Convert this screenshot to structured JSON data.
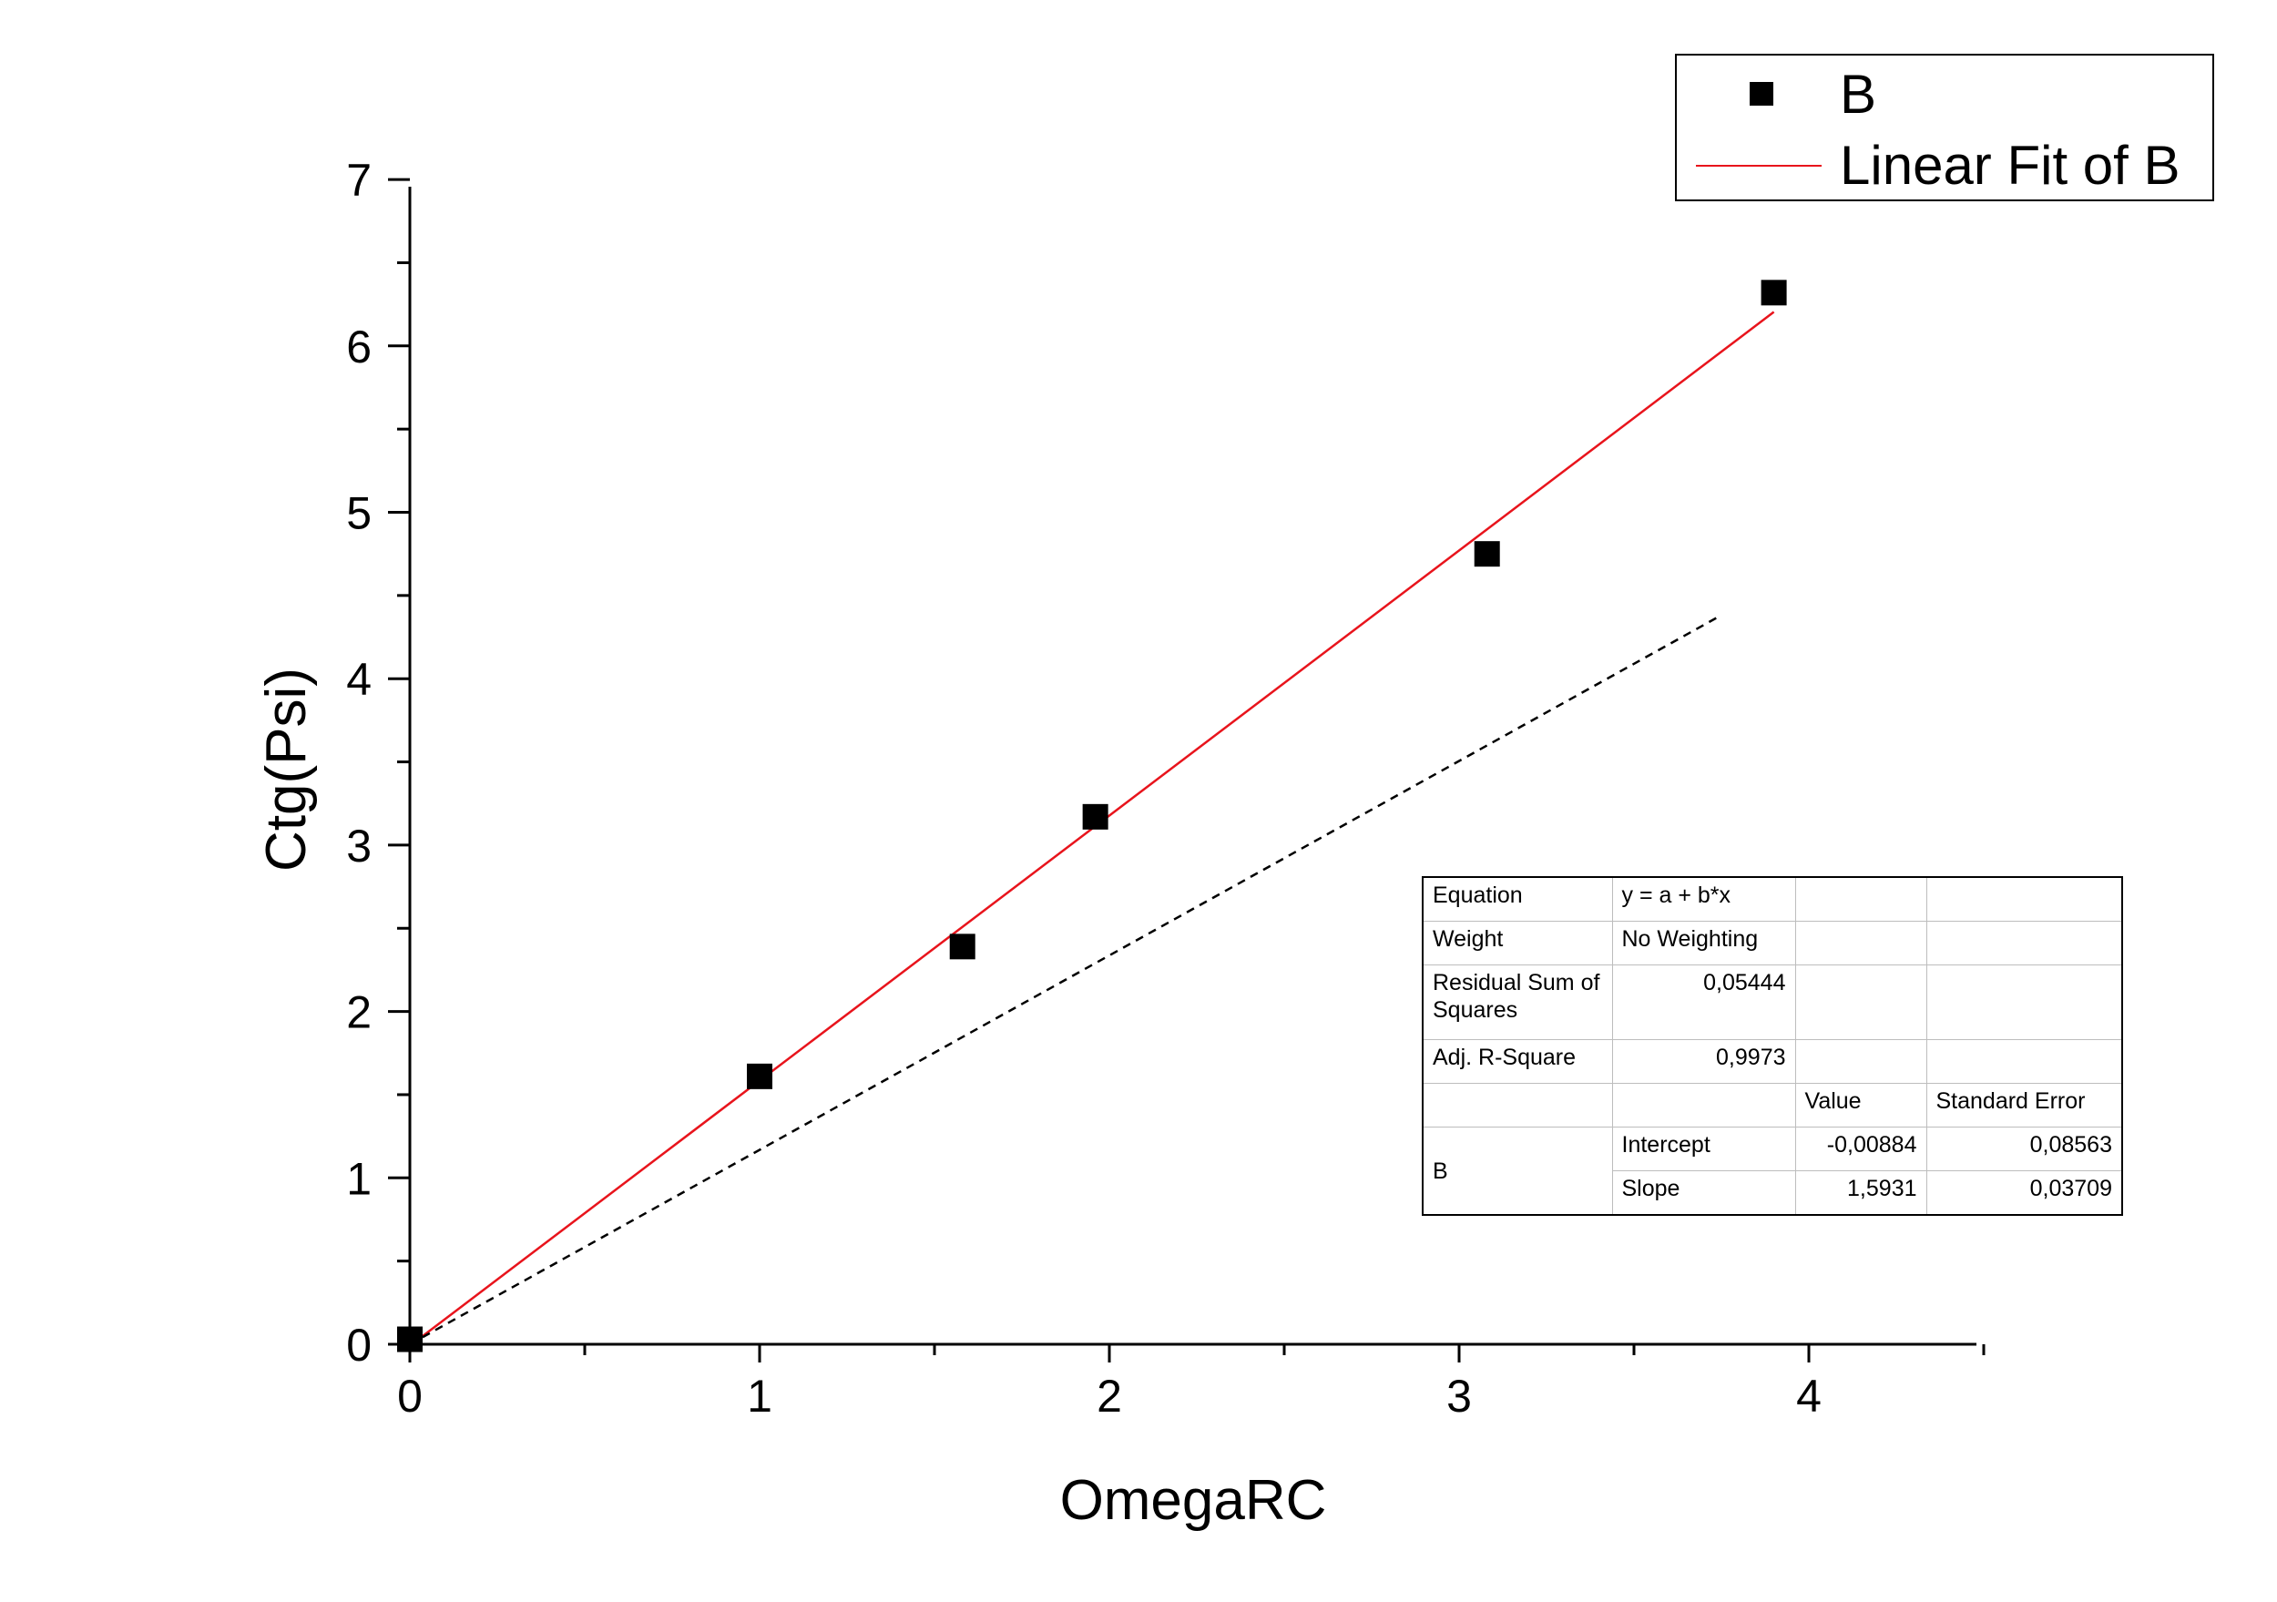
{
  "chart_data": {
    "type": "scatter",
    "xlabel": "OmegaRC",
    "ylabel": "Ctg(Psi)",
    "xlim": [
      0,
      4.5
    ],
    "ylim": [
      0,
      7
    ],
    "x_ticks": [
      "0",
      "1",
      "2",
      "3",
      "4"
    ],
    "y_ticks": [
      "0",
      "1",
      "2",
      "3",
      "4",
      "5",
      "6",
      "7"
    ],
    "legend_position": "top-right",
    "series": [
      {
        "name": "B",
        "kind": "points",
        "marker": "square",
        "color": "#000000",
        "x": [
          0.0,
          1.0,
          1.58,
          1.96,
          3.08,
          3.9
        ],
        "y": [
          0.03,
          1.61,
          2.39,
          3.17,
          4.75,
          6.32
        ]
      },
      {
        "name": "Linear Fit of B",
        "kind": "fit-line",
        "color": "#e8141c",
        "intercept": -0.00884,
        "slope": 1.5931,
        "x_range": [
          0,
          3.9
        ]
      },
      {
        "kind": "dashed-line",
        "color": "#000000",
        "x": [
          0,
          3.74
        ],
        "y": [
          0,
          4.37
        ]
      }
    ],
    "legend": {
      "entries": [
        "B",
        "Linear Fit of B"
      ]
    },
    "fit_table": {
      "rows": [
        {
          "label": "Equation",
          "c2": "y = a + b*x",
          "c3": "",
          "c4": ""
        },
        {
          "label": "Weight",
          "c2": "No Weighting",
          "c3": "",
          "c4": ""
        },
        {
          "label": "Residual Sum of Squares",
          "c2": "0,05444",
          "c3": "",
          "c4": ""
        },
        {
          "label": "Adj. R-Square",
          "c2": "0,9973",
          "c3": "",
          "c4": ""
        }
      ],
      "header": {
        "value": "Value",
        "error": "Standard Error"
      },
      "group_label": "B",
      "params": [
        {
          "name": "Intercept",
          "value": "-0,00884",
          "error": "0,08563"
        },
        {
          "name": "Slope",
          "value": "1,5931",
          "error": "0,03709"
        }
      ]
    }
  }
}
